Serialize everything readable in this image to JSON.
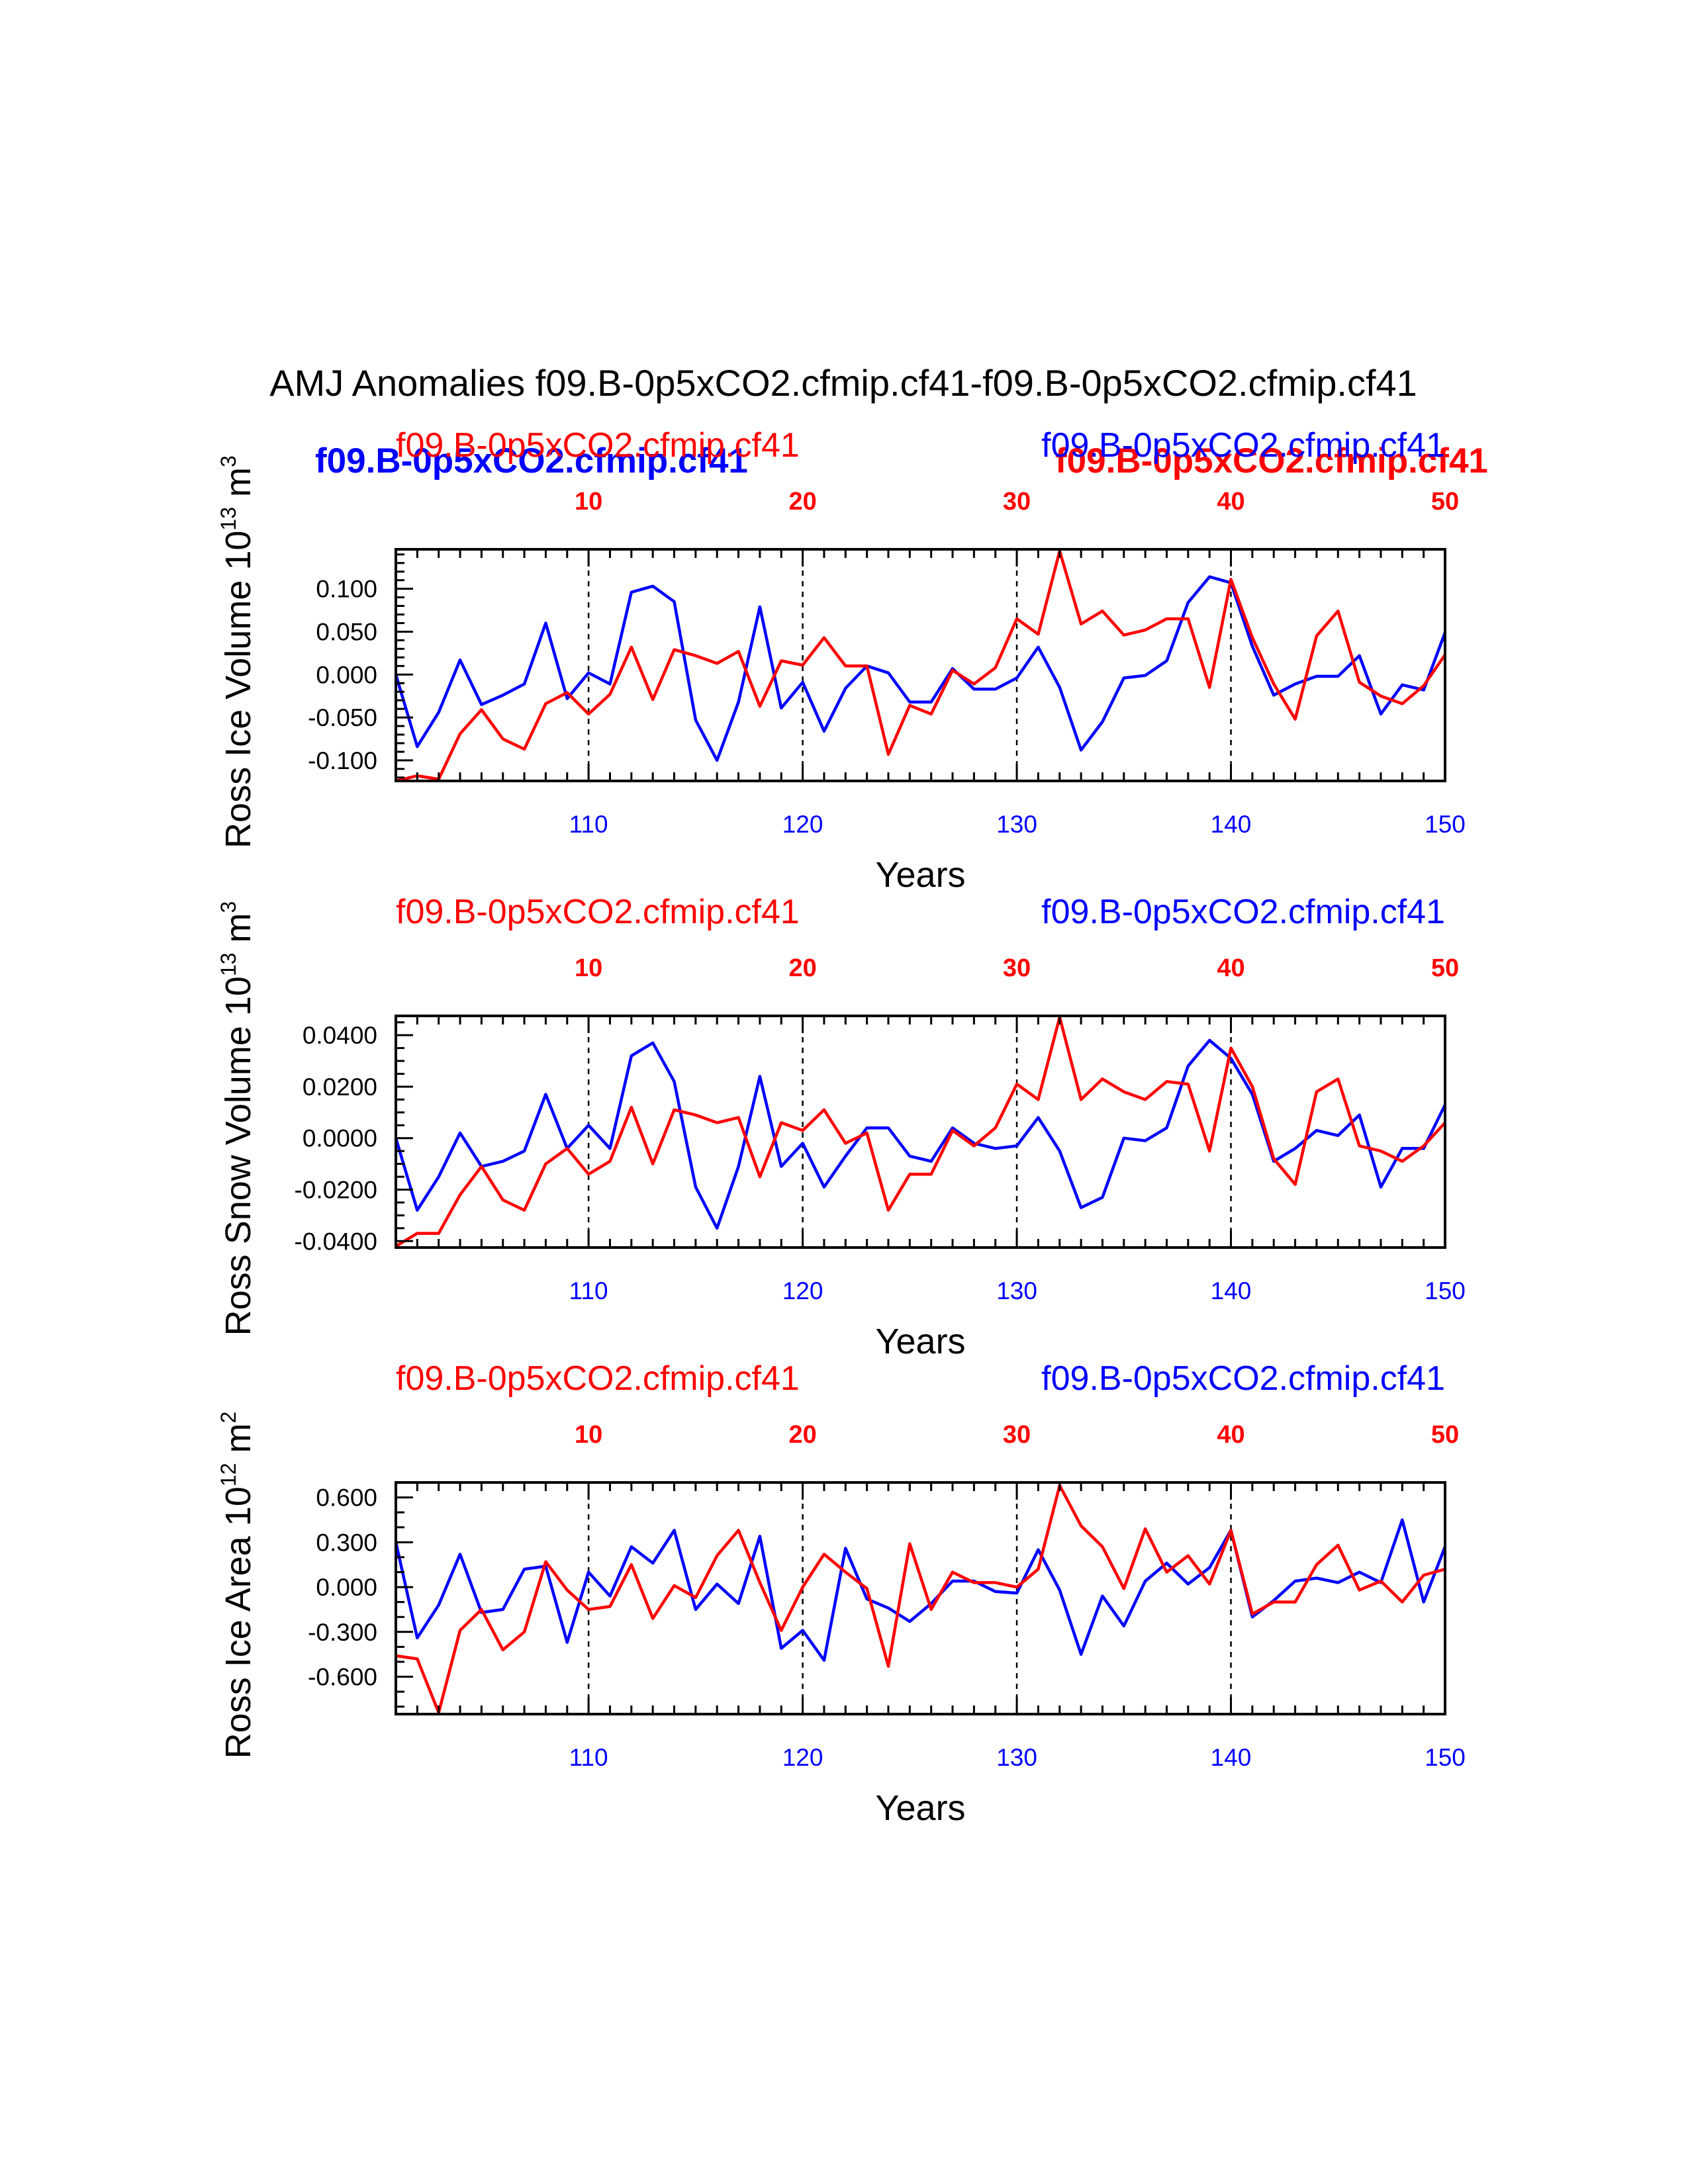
{
  "figure": {
    "title": "AMJ Anomalies f09.B-0p5xCO2.cfmip.cf41-f09.B-0p5xCO2.cfmip.cf41",
    "overlay_left_label": "f09.B-0p5xCO2.cfmip.cf41",
    "overlay_right_label": "f09.B-0p5xCO2.cfmip.cf41"
  },
  "colors": {
    "red": "#ff0000",
    "blue": "#0000ff",
    "black": "#000000"
  },
  "chart_data": [
    {
      "type": "line",
      "panel": "ross-ice-volume",
      "ylabel": "Ross Ice Volume 10",
      "ylabel_exp": "13",
      "ylabel_unit": "m",
      "ylabel_unit_exp": "3",
      "xlabel": "Years",
      "top_label_left": "f09.B-0p5xCO2.cfmip.cf41",
      "top_label_right": "f09.B-0p5xCO2.cfmip.cf41",
      "bottom_axis": {
        "range": [
          101,
          150
        ],
        "ticks": [
          110,
          120,
          130,
          140,
          150
        ],
        "tick_labels": [
          "110",
          "120",
          "130",
          "140",
          "150"
        ]
      },
      "top_axis": {
        "range": [
          1,
          50
        ],
        "ticks": [
          10,
          20,
          30,
          40,
          50
        ],
        "tick_labels": [
          "10",
          "20",
          "30",
          "40",
          "50"
        ]
      },
      "ylim": [
        -0.124,
        0.146
      ],
      "y_ticks": [
        -0.1,
        -0.05,
        0.0,
        0.05,
        0.1
      ],
      "y_tick_labels": [
        "-0.100",
        "-0.050",
        "0.000",
        "0.050",
        "0.100"
      ],
      "y_minor_step": 0.01,
      "series": [
        {
          "name": "f09.B-0p5xCO2.cfmip.cf41 (blue)",
          "color": "#0000ff",
          "values": [
            0.0,
            -0.084,
            -0.044,
            0.017,
            -0.035,
            -0.024,
            -0.011,
            0.06,
            -0.028,
            0.002,
            -0.011,
            0.096,
            0.103,
            0.085,
            -0.053,
            -0.1,
            -0.032,
            0.079,
            -0.039,
            -0.009,
            -0.066,
            -0.016,
            0.01,
            0.002,
            -0.032,
            -0.032,
            0.007,
            -0.017,
            -0.017,
            -0.004,
            0.032,
            -0.015,
            -0.088,
            -0.055,
            -0.004,
            -0.001,
            0.016,
            0.084,
            0.114,
            0.107,
            0.033,
            -0.024,
            -0.011,
            -0.002,
            -0.002,
            0.022,
            -0.046,
            -0.012,
            -0.018,
            0.049
          ]
        },
        {
          "name": "f09.B-0p5xCO2.cfmip.cf41 (red)",
          "color": "#ff0000",
          "values": [
            -0.124,
            -0.118,
            -0.122,
            -0.069,
            -0.041,
            -0.075,
            -0.087,
            -0.034,
            -0.021,
            -0.046,
            -0.023,
            0.032,
            -0.029,
            0.029,
            0.022,
            0.013,
            0.027,
            -0.037,
            0.016,
            0.011,
            0.043,
            0.01,
            0.01,
            -0.093,
            -0.036,
            -0.046,
            0.005,
            -0.011,
            0.008,
            0.065,
            0.047,
            0.144,
            0.059,
            0.074,
            0.046,
            0.052,
            0.065,
            0.065,
            -0.015,
            0.111,
            0.043,
            -0.011,
            -0.052,
            0.045,
            0.074,
            -0.009,
            -0.025,
            -0.034,
            -0.013,
            0.023
          ]
        }
      ]
    },
    {
      "type": "line",
      "panel": "ross-snow-volume",
      "ylabel": "Ross Snow Volume 10",
      "ylabel_exp": "13",
      "ylabel_unit": "m",
      "ylabel_unit_exp": "3",
      "xlabel": "Years",
      "top_label_left": "f09.B-0p5xCO2.cfmip.cf41",
      "top_label_right": "f09.B-0p5xCO2.cfmip.cf41",
      "bottom_axis": {
        "range": [
          101,
          150
        ],
        "ticks": [
          110,
          120,
          130,
          140,
          150
        ],
        "tick_labels": [
          "110",
          "120",
          "130",
          "140",
          "150"
        ]
      },
      "top_axis": {
        "range": [
          1,
          50
        ],
        "ticks": [
          10,
          20,
          30,
          40,
          50
        ],
        "tick_labels": [
          "10",
          "20",
          "30",
          "40",
          "50"
        ]
      },
      "ylim": [
        -0.0425,
        0.0475
      ],
      "y_ticks": [
        -0.04,
        -0.02,
        0.0,
        0.02,
        0.04
      ],
      "y_tick_labels": [
        "-0.0400",
        "-0.0200",
        "0.0000",
        "0.0200",
        "0.0400"
      ],
      "y_minor_step": 0.005,
      "series": [
        {
          "name": "f09.B-0p5xCO2.cfmip.cf41 (blue)",
          "color": "#0000ff",
          "values": [
            0.0,
            -0.028,
            -0.015,
            0.002,
            -0.011,
            -0.009,
            -0.005,
            0.017,
            -0.004,
            0.005,
            -0.004,
            0.032,
            0.037,
            0.022,
            -0.019,
            -0.035,
            -0.011,
            0.024,
            -0.011,
            -0.002,
            -0.019,
            -0.007,
            0.004,
            0.004,
            -0.007,
            -0.009,
            0.004,
            -0.002,
            -0.004,
            -0.003,
            0.008,
            -0.005,
            -0.027,
            -0.023,
            0.0,
            -0.001,
            0.004,
            0.028,
            0.038,
            0.031,
            0.017,
            -0.009,
            -0.004,
            0.003,
            0.001,
            0.009,
            -0.019,
            -0.004,
            -0.004,
            0.013
          ]
        },
        {
          "name": "f09.B-0p5xCO2.cfmip.cf41 (red)",
          "color": "#ff0000",
          "values": [
            -0.042,
            -0.037,
            -0.037,
            -0.022,
            -0.011,
            -0.024,
            -0.028,
            -0.01,
            -0.004,
            -0.014,
            -0.009,
            0.012,
            -0.01,
            0.011,
            0.009,
            0.006,
            0.008,
            -0.015,
            0.006,
            0.003,
            0.011,
            -0.002,
            0.002,
            -0.028,
            -0.014,
            -0.014,
            0.003,
            -0.003,
            0.004,
            0.021,
            0.015,
            0.047,
            0.015,
            0.023,
            0.018,
            0.015,
            0.022,
            0.021,
            -0.005,
            0.035,
            0.02,
            -0.008,
            -0.018,
            0.018,
            0.023,
            -0.003,
            -0.005,
            -0.009,
            -0.003,
            0.006
          ]
        }
      ]
    },
    {
      "type": "line",
      "panel": "ross-ice-area",
      "ylabel": "Ross Ice Area 10",
      "ylabel_exp": "12",
      "ylabel_unit": "m",
      "ylabel_unit_exp": "2",
      "xlabel": "Years",
      "top_label_left": "f09.B-0p5xCO2.cfmip.cf41",
      "top_label_right": "f09.B-0p5xCO2.cfmip.cf41",
      "bottom_axis": {
        "range": [
          101,
          150
        ],
        "ticks": [
          110,
          120,
          130,
          140,
          150
        ],
        "tick_labels": [
          "110",
          "120",
          "130",
          "140",
          "150"
        ]
      },
      "top_axis": {
        "range": [
          1,
          50
        ],
        "ticks": [
          10,
          20,
          30,
          40,
          50
        ],
        "tick_labels": [
          "10",
          "20",
          "30",
          "40",
          "50"
        ]
      },
      "ylim": [
        -0.85,
        0.7
      ],
      "y_ticks": [
        -0.6,
        -0.3,
        0.0,
        0.3,
        0.6
      ],
      "y_tick_labels": [
        "-0.600",
        "-0.300",
        "0.000",
        "0.300",
        "0.600"
      ],
      "y_minor_step": 0.1,
      "series": [
        {
          "name": "f09.B-0p5xCO2.cfmip.cf41 (blue)",
          "color": "#0000ff",
          "values": [
            0.3,
            -0.34,
            -0.12,
            0.22,
            -0.17,
            -0.15,
            0.12,
            0.14,
            -0.37,
            0.1,
            -0.06,
            0.27,
            0.16,
            0.38,
            -0.15,
            0.02,
            -0.11,
            0.34,
            -0.41,
            -0.29,
            -0.49,
            0.26,
            -0.08,
            -0.14,
            -0.23,
            -0.11,
            0.04,
            0.04,
            -0.03,
            -0.04,
            0.25,
            -0.02,
            -0.45,
            -0.06,
            -0.26,
            0.04,
            0.16,
            0.02,
            0.13,
            0.38,
            -0.2,
            -0.09,
            0.04,
            0.06,
            0.03,
            0.1,
            0.03,
            0.45,
            -0.1,
            0.27
          ]
        },
        {
          "name": "f09.B-0p5xCO2.cfmip.cf41 (red)",
          "color": "#ff0000",
          "values": [
            -0.46,
            -0.48,
            -0.84,
            -0.29,
            -0.15,
            -0.42,
            -0.3,
            0.17,
            -0.02,
            -0.15,
            -0.13,
            0.15,
            -0.21,
            0.01,
            -0.07,
            0.21,
            0.38,
            0.03,
            -0.29,
            0.0,
            0.22,
            0.1,
            -0.01,
            -0.53,
            0.29,
            -0.15,
            0.1,
            0.03,
            0.03,
            0.0,
            0.12,
            0.68,
            0.41,
            0.27,
            -0.01,
            0.39,
            0.1,
            0.21,
            0.02,
            0.38,
            -0.18,
            -0.1,
            -0.1,
            0.15,
            0.28,
            -0.02,
            0.04,
            -0.1,
            0.08,
            0.12
          ]
        }
      ]
    }
  ]
}
